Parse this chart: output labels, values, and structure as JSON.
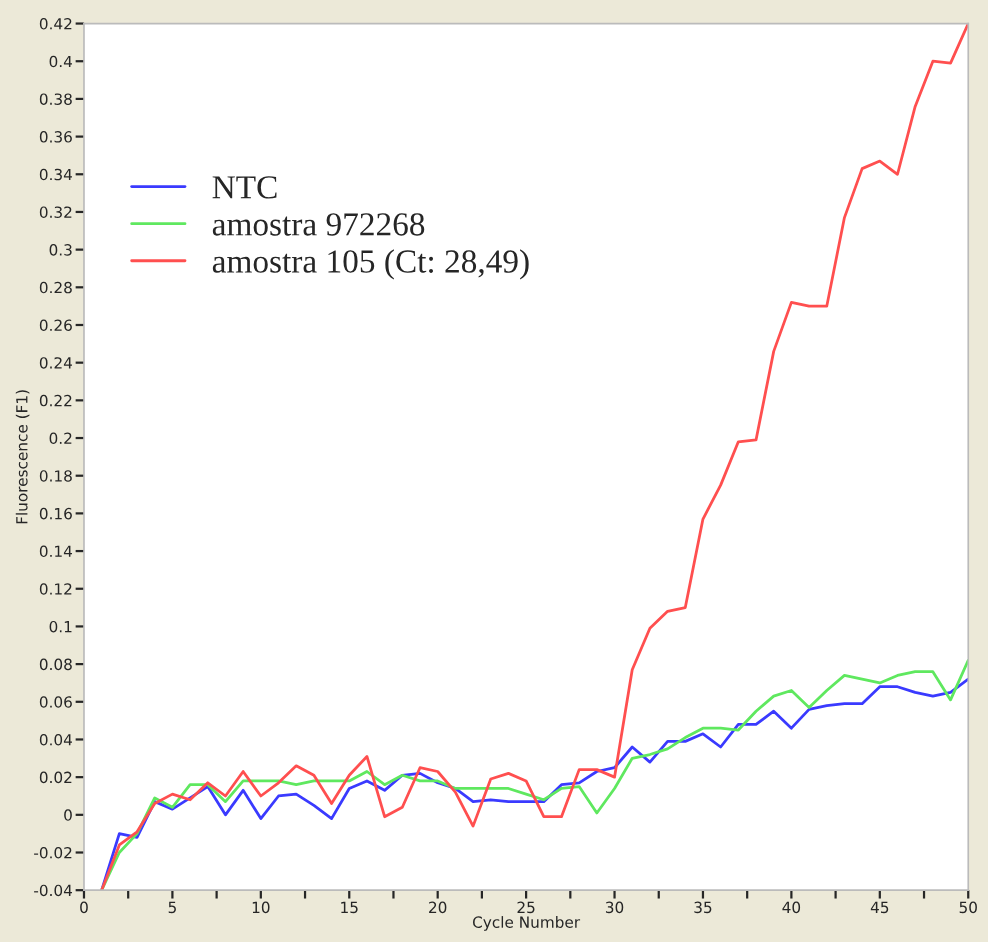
{
  "chart_data": {
    "type": "line",
    "xlabel": "Cycle Number",
    "ylabel": "Fluorescence (F1)",
    "x": [
      1,
      2,
      3,
      4,
      5,
      6,
      7,
      8,
      9,
      10,
      11,
      12,
      13,
      14,
      15,
      16,
      17,
      18,
      19,
      20,
      21,
      22,
      23,
      24,
      25,
      26,
      27,
      28,
      29,
      30,
      31,
      32,
      33,
      34,
      35,
      36,
      37,
      38,
      39,
      40,
      41,
      42,
      43,
      44,
      45,
      46,
      47,
      48,
      49,
      50
    ],
    "series": [
      {
        "name": "NTC",
        "color": "#3a3aff",
        "values": [
          -0.04,
          -0.01,
          -0.012,
          0.007,
          0.003,
          0.009,
          0.015,
          0.0,
          0.013,
          -0.002,
          0.01,
          0.011,
          0.005,
          -0.002,
          0.014,
          0.018,
          0.013,
          0.021,
          0.022,
          0.017,
          0.014,
          0.007,
          0.008,
          0.007,
          0.007,
          0.007,
          0.016,
          0.017,
          0.023,
          0.025,
          0.036,
          0.028,
          0.039,
          0.039,
          0.043,
          0.036,
          0.048,
          0.048,
          0.055,
          0.046,
          0.056,
          0.058,
          0.059,
          0.059,
          0.068,
          0.068,
          0.065,
          0.063,
          0.065,
          0.072
        ]
      },
      {
        "name": "amostra 972268",
        "color": "#5fe85f",
        "values": [
          -0.04,
          -0.02,
          -0.01,
          0.009,
          0.004,
          0.016,
          0.016,
          0.007,
          0.018,
          0.018,
          0.018,
          0.016,
          0.018,
          0.018,
          0.018,
          0.023,
          0.016,
          0.021,
          0.018,
          0.018,
          0.014,
          0.014,
          0.014,
          0.014,
          0.011,
          0.008,
          0.014,
          0.015,
          0.001,
          0.014,
          0.03,
          0.032,
          0.035,
          0.041,
          0.046,
          0.046,
          0.045,
          0.055,
          0.063,
          0.066,
          0.057,
          0.066,
          0.074,
          0.072,
          0.07,
          0.074,
          0.076,
          0.076,
          0.061,
          0.082
        ]
      },
      {
        "name": "amostra 105 (Ct: 28,49)",
        "color": "#ff4f4f",
        "values": [
          -0.04,
          -0.016,
          -0.009,
          0.006,
          0.011,
          0.008,
          0.017,
          0.01,
          0.023,
          0.01,
          0.017,
          0.026,
          0.021,
          0.006,
          0.021,
          0.031,
          -0.001,
          0.004,
          0.025,
          0.023,
          0.012,
          -0.006,
          0.019,
          0.022,
          0.018,
          -0.001,
          -0.001,
          0.024,
          0.024,
          0.02,
          0.077,
          0.099,
          0.108,
          0.11,
          0.157,
          0.175,
          0.198,
          0.199,
          0.246,
          0.272,
          0.27,
          0.27,
          0.317,
          0.343,
          0.347,
          0.34,
          0.376,
          0.4,
          0.399,
          0.42
        ]
      }
    ],
    "xlim": [
      0,
      50
    ],
    "xticks": [
      0,
      {
        "value": 2.5,
        "label": null
      },
      5,
      {
        "value": 7.5,
        "label": null
      },
      10,
      {
        "value": 12.5,
        "label": null
      },
      15,
      {
        "value": 17.5,
        "label": null
      },
      20,
      {
        "value": 22.5,
        "label": null
      },
      25,
      {
        "value": 27.5,
        "label": null
      },
      30,
      {
        "value": 32.5,
        "label": null
      },
      35,
      {
        "value": 37.5,
        "label": null
      },
      40,
      {
        "value": 42.5,
        "label": null
      },
      45,
      {
        "value": 47.5,
        "label": null
      },
      50
    ],
    "ylim": [
      -0.04,
      0.42
    ],
    "yticks": [
      -0.04,
      -0.02,
      0,
      0.02,
      0.04,
      0.06,
      0.08,
      0.1,
      0.12,
      0.14,
      0.16,
      0.18,
      0.2,
      0.22,
      0.24,
      0.26,
      0.28,
      0.3,
      0.32,
      0.34,
      0.36,
      0.38,
      0.4,
      0.42
    ],
    "grid": false,
    "legend": "top left",
    "marker": "none",
    "line_style": "solid"
  }
}
